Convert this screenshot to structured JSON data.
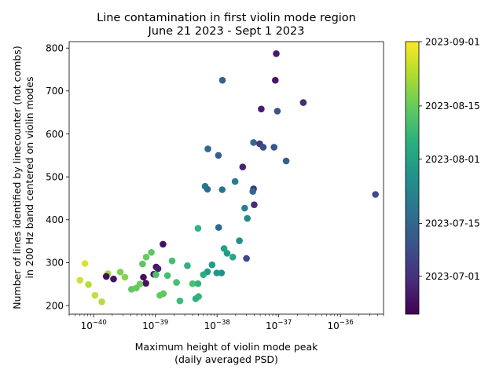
{
  "chart_data": {
    "type": "scatter",
    "title": "Line contamination in first violin mode region",
    "subtitle": "June 21 2023 - Sept 1 2023",
    "xlabel_line1": "Maximum height of violin mode peak",
    "xlabel_line2": "(daily averaged PSD)",
    "ylabel_line1": "Number of lines identified by linecounter (not combs)",
    "ylabel_line2": "in 200 Hz band centered on violin modes",
    "x_scale": "log",
    "xlim": [
      4e-41,
      5e-36
    ],
    "ylim": [
      180,
      815
    ],
    "x_ticks": [
      {
        "exp": -40,
        "label": "10",
        "sup": "−40"
      },
      {
        "exp": -39,
        "label": "10",
        "sup": "−39"
      },
      {
        "exp": -38,
        "label": "10",
        "sup": "−38"
      },
      {
        "exp": -37,
        "label": "10",
        "sup": "−37"
      },
      {
        "exp": -36,
        "label": "10",
        "sup": "−36"
      }
    ],
    "y_ticks": [
      200,
      300,
      400,
      500,
      600,
      700,
      800
    ],
    "grid": false,
    "colormap": "viridis",
    "colorbar": {
      "tick_labels": [
        "2023-07-01",
        "2023-07-15",
        "2023-08-01",
        "2023-08-15",
        "2023-09-01"
      ],
      "tick_fractions": [
        0.139,
        0.333,
        0.569,
        0.764,
        1.0
      ]
    },
    "points": [
      {
        "x": 9.1e-38,
        "y": 787,
        "c": 0.08
      },
      {
        "x": 8.8e-38,
        "y": 725,
        "c": 0.07
      },
      {
        "x": 1.22e-38,
        "y": 725,
        "c": 0.35
      },
      {
        "x": 2.5e-37,
        "y": 673,
        "c": 0.14
      },
      {
        "x": 5.2e-38,
        "y": 658,
        "c": 0.09
      },
      {
        "x": 9.5e-38,
        "y": 653,
        "c": 0.28
      },
      {
        "x": 3.9e-38,
        "y": 580,
        "c": 0.37
      },
      {
        "x": 4.9e-38,
        "y": 577,
        "c": 0.18
      },
      {
        "x": 8.4e-38,
        "y": 569,
        "c": 0.3
      },
      {
        "x": 5.6e-38,
        "y": 569,
        "c": 0.25
      },
      {
        "x": 7.1e-39,
        "y": 565,
        "c": 0.38
      },
      {
        "x": 1.05e-38,
        "y": 550,
        "c": 0.33
      },
      {
        "x": 1.32e-37,
        "y": 537,
        "c": 0.33
      },
      {
        "x": 2.6e-38,
        "y": 523,
        "c": 0.11
      },
      {
        "x": 1.96e-38,
        "y": 489,
        "c": 0.47
      },
      {
        "x": 6.4e-39,
        "y": 478,
        "c": 0.45
      },
      {
        "x": 7e-39,
        "y": 471,
        "c": 0.4
      },
      {
        "x": 1.21e-38,
        "y": 470,
        "c": 0.41
      },
      {
        "x": 3.9e-38,
        "y": 472,
        "c": 0.16
      },
      {
        "x": 3.8e-38,
        "y": 466,
        "c": 0.39
      },
      {
        "x": 3.7e-36,
        "y": 459,
        "c": 0.26
      },
      {
        "x": 4e-38,
        "y": 435,
        "c": 0.14
      },
      {
        "x": 2.8e-38,
        "y": 427,
        "c": 0.5
      },
      {
        "x": 3.1e-38,
        "y": 403,
        "c": 0.54
      },
      {
        "x": 1.06e-38,
        "y": 382,
        "c": 0.38
      },
      {
        "x": 4.9e-39,
        "y": 380,
        "c": 0.73
      },
      {
        "x": 2.3e-38,
        "y": 351,
        "c": 0.54
      },
      {
        "x": 1.33e-39,
        "y": 343,
        "c": 0.05
      },
      {
        "x": 1.3e-38,
        "y": 333,
        "c": 0.65
      },
      {
        "x": 1.45e-38,
        "y": 322,
        "c": 0.62
      },
      {
        "x": 8.6e-40,
        "y": 324,
        "c": 0.84
      },
      {
        "x": 7.1e-40,
        "y": 313,
        "c": 0.86
      },
      {
        "x": 1.8e-38,
        "y": 313,
        "c": 0.68
      },
      {
        "x": 3e-38,
        "y": 310,
        "c": 0.24
      },
      {
        "x": 1.87e-39,
        "y": 304,
        "c": 0.79
      },
      {
        "x": 6.2e-40,
        "y": 297,
        "c": 0.84
      },
      {
        "x": 7.2e-41,
        "y": 298,
        "c": 0.97
      },
      {
        "x": 8.3e-39,
        "y": 295,
        "c": 0.62
      },
      {
        "x": 3.3e-39,
        "y": 293,
        "c": 0.72
      },
      {
        "x": 1.03e-39,
        "y": 290,
        "c": 0.06
      },
      {
        "x": 1.1e-39,
        "y": 286,
        "c": 0.09
      },
      {
        "x": 7e-39,
        "y": 279,
        "c": 0.61
      },
      {
        "x": 2.7e-40,
        "y": 278,
        "c": 0.89
      },
      {
        "x": 1.18e-38,
        "y": 276,
        "c": 0.56
      },
      {
        "x": 9.9e-39,
        "y": 276,
        "c": 0.6
      },
      {
        "x": 9.4e-40,
        "y": 273,
        "c": 0.07
      },
      {
        "x": 1.02e-39,
        "y": 272,
        "c": 0.8
      },
      {
        "x": 1.7e-40,
        "y": 274,
        "c": 0.92
      },
      {
        "x": 1.57e-39,
        "y": 270,
        "c": 0.79
      },
      {
        "x": 6e-39,
        "y": 272,
        "c": 0.7
      },
      {
        "x": 3.2e-40,
        "y": 266,
        "c": 0.9
      },
      {
        "x": 1.6e-40,
        "y": 268,
        "c": 0.04
      },
      {
        "x": 6.4e-40,
        "y": 266,
        "c": 0.04
      },
      {
        "x": 2.1e-40,
        "y": 262,
        "c": 0.05
      },
      {
        "x": 6e-41,
        "y": 259,
        "c": 0.96
      },
      {
        "x": 2.2e-39,
        "y": 254,
        "c": 0.79
      },
      {
        "x": 4e-39,
        "y": 251,
        "c": 0.8
      },
      {
        "x": 4.9e-39,
        "y": 251,
        "c": 0.73
      },
      {
        "x": 7e-40,
        "y": 252,
        "c": 0.05
      },
      {
        "x": 8.2e-41,
        "y": 249,
        "c": 0.94
      },
      {
        "x": 5.6e-40,
        "y": 250,
        "c": 0.87
      },
      {
        "x": 4.9e-40,
        "y": 241,
        "c": 0.86
      },
      {
        "x": 4.1e-40,
        "y": 238,
        "c": 0.85
      },
      {
        "x": 1.35e-39,
        "y": 228,
        "c": 0.84
      },
      {
        "x": 1.18e-39,
        "y": 224,
        "c": 0.85
      },
      {
        "x": 1.05e-40,
        "y": 224,
        "c": 0.95
      },
      {
        "x": 5e-39,
        "y": 221,
        "c": 0.74
      },
      {
        "x": 4.5e-39,
        "y": 216,
        "c": 0.71
      },
      {
        "x": 2.5e-39,
        "y": 211,
        "c": 0.77
      },
      {
        "x": 1.35e-40,
        "y": 209,
        "c": 0.94
      }
    ]
  }
}
